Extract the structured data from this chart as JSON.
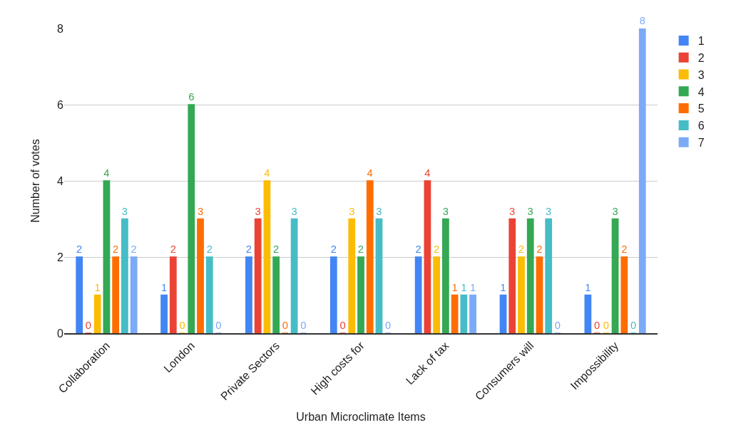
{
  "chart_data": {
    "type": "bar",
    "xlabel": "Urban Microclimate Items",
    "ylabel": "Number of votes",
    "categories": [
      "Collaboration",
      "London",
      "Private Sectors",
      "High costs for",
      "Lack of tax",
      "Consumers will",
      "Impossibility"
    ],
    "series": [
      {
        "name": "1",
        "color": "#4285f4",
        "values": [
          2,
          1,
          2,
          2,
          2,
          1,
          1
        ]
      },
      {
        "name": "2",
        "color": "#ea4335",
        "values": [
          0,
          2,
          3,
          0,
          4,
          3,
          0
        ]
      },
      {
        "name": "3",
        "color": "#fbbc04",
        "values": [
          1,
          0,
          4,
          3,
          2,
          2,
          0
        ]
      },
      {
        "name": "4",
        "color": "#34a853",
        "values": [
          4,
          6,
          2,
          2,
          3,
          3,
          3
        ]
      },
      {
        "name": "5",
        "color": "#ff6d01",
        "values": [
          2,
          3,
          0,
          4,
          1,
          2,
          2
        ]
      },
      {
        "name": "6",
        "color": "#46bdc6",
        "values": [
          3,
          2,
          3,
          3,
          1,
          3,
          0
        ]
      },
      {
        "name": "7",
        "color": "#7baaf7",
        "values": [
          2,
          0,
          0,
          0,
          1,
          0,
          8
        ]
      }
    ],
    "ylim": [
      0,
      8
    ],
    "yticks": [
      0,
      2,
      4,
      6,
      8
    ],
    "grid": "y",
    "legend": "right",
    "data_labels": true
  }
}
